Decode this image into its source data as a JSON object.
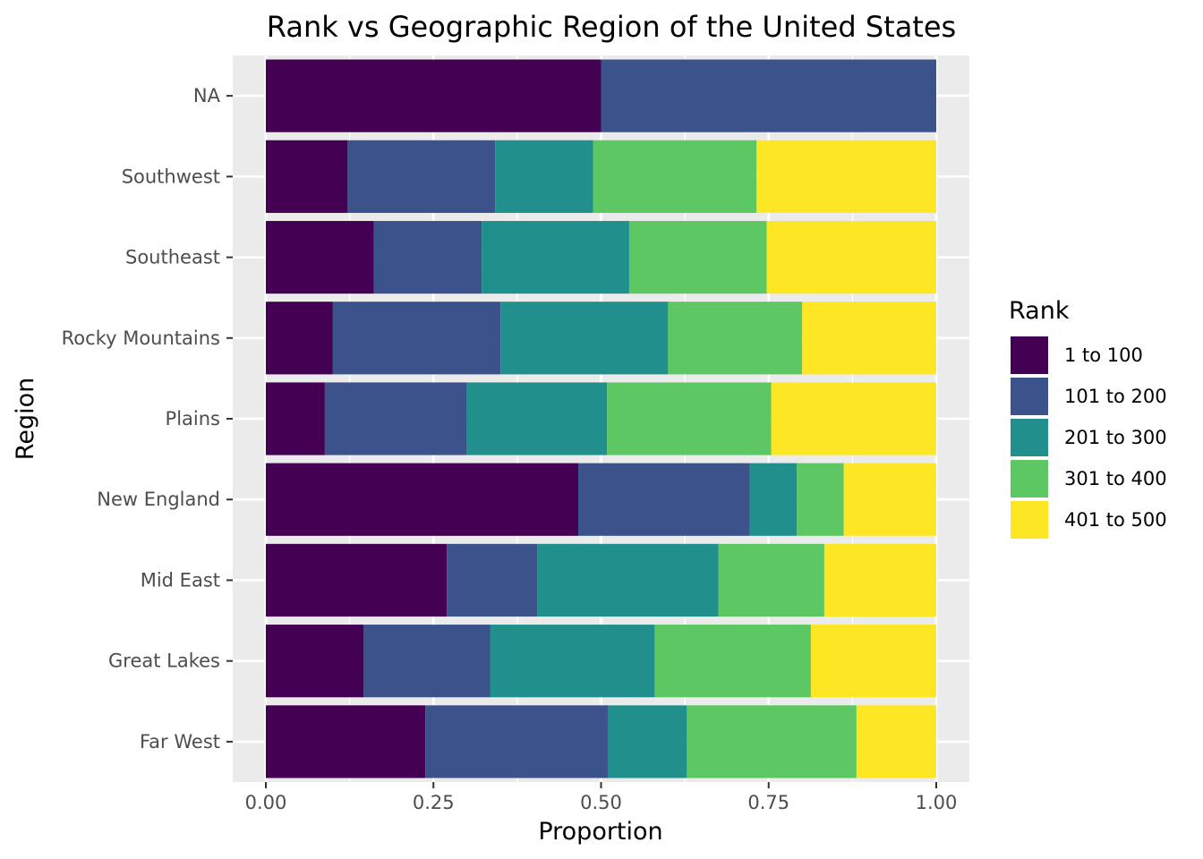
{
  "chart_data": {
    "type": "bar",
    "orientation": "horizontal",
    "stacked": true,
    "title": "Rank vs Geographic Region of the United States",
    "xlabel": "Proportion",
    "ylabel": "Region",
    "xlim": [
      0,
      1
    ],
    "xticks": [
      "0.00",
      "0.25",
      "0.50",
      "0.75",
      "1.00"
    ],
    "grid": true,
    "legend_title": "Rank",
    "legend_position": "right",
    "categories": [
      "Far West",
      "Great Lakes",
      "Mid East",
      "New England",
      "Plains",
      "Rocky Mountains",
      "Southeast",
      "Southwest",
      "NA"
    ],
    "series": [
      {
        "name": "1 to 100",
        "color": "#440154",
        "values": [
          0.238,
          0.146,
          0.27,
          0.466,
          0.088,
          0.1,
          0.161,
          0.122,
          0.5
        ]
      },
      {
        "name": "101 to 200",
        "color": "#3b528b",
        "values": [
          0.272,
          0.189,
          0.135,
          0.256,
          0.212,
          0.25,
          0.161,
          0.22,
          0.5
        ]
      },
      {
        "name": "201 to 300",
        "color": "#21908c",
        "values": [
          0.118,
          0.245,
          0.27,
          0.07,
          0.209,
          0.25,
          0.22,
          0.146,
          0.0
        ]
      },
      {
        "name": "301 to 400",
        "color": "#5dc863",
        "values": [
          0.253,
          0.233,
          0.158,
          0.07,
          0.245,
          0.2,
          0.205,
          0.244,
          0.0
        ]
      },
      {
        "name": "401 to 500",
        "color": "#fde725",
        "values": [
          0.119,
          0.187,
          0.167,
          0.138,
          0.246,
          0.2,
          0.253,
          0.268,
          0.0
        ]
      }
    ]
  }
}
